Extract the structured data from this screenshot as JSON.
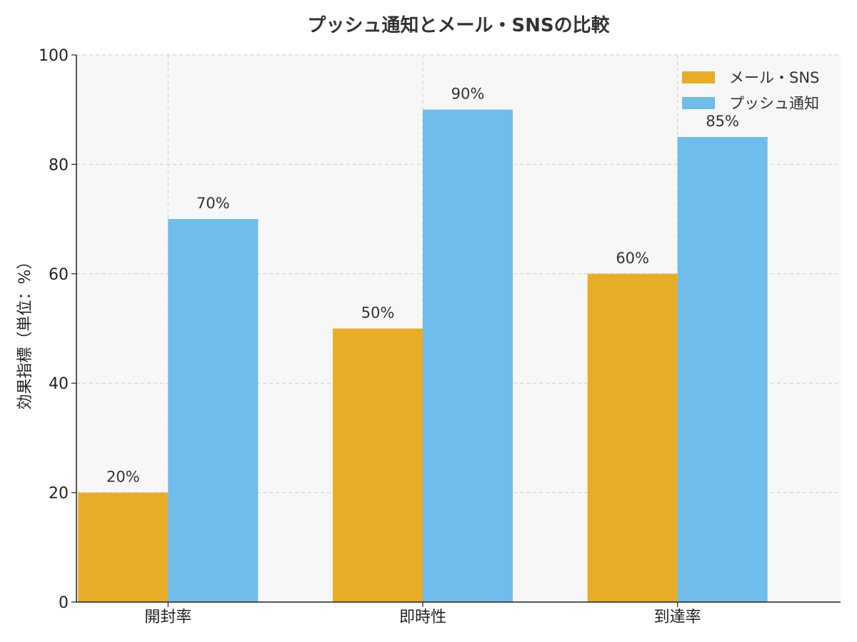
{
  "chart_data": {
    "type": "bar",
    "title": "プッシュ通知とメール・SNSの比較",
    "xlabel": "",
    "ylabel": "効果指標（単位：%）",
    "categories": [
      "開封率",
      "即時性",
      "到達率"
    ],
    "series": [
      {
        "name": "メール・SNS",
        "values": [
          20,
          50,
          60
        ],
        "color": "#E8AC27"
      },
      {
        "name": "プッシュ通知",
        "values": [
          70,
          90,
          85
        ],
        "color": "#6EBDEA"
      }
    ],
    "value_labels": {
      "メール・SNS": [
        "20%",
        "50%",
        "60%"
      ],
      "プッシュ通知": [
        "70%",
        "90%",
        "85%"
      ]
    },
    "ylim": [
      0,
      100
    ],
    "yticks": [
      0,
      20,
      40,
      60,
      80,
      100
    ],
    "grid": true,
    "legend_position": "top-right",
    "plot_background": "#F7F7F7"
  }
}
